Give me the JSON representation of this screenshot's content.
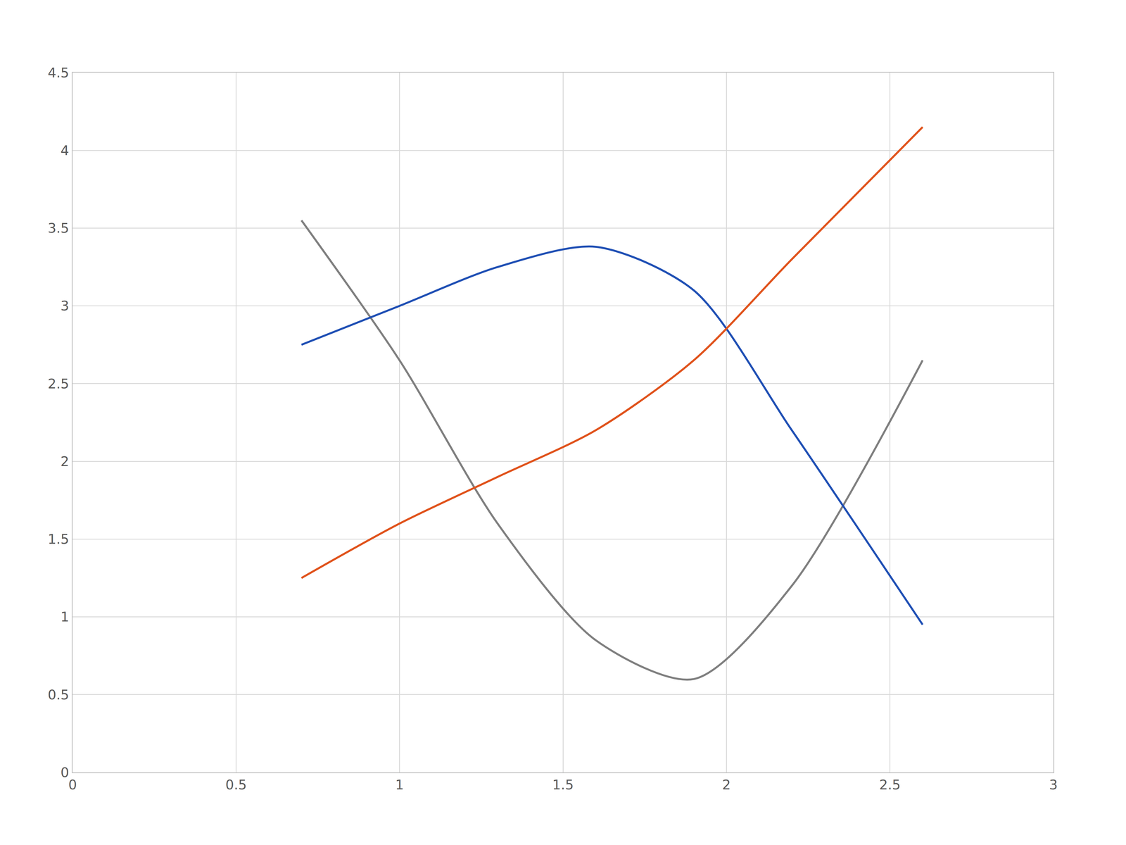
{
  "chart_data": {
    "type": "line",
    "x": [
      0.7,
      1.0,
      1.3,
      1.6,
      1.9,
      2.2,
      2.6
    ],
    "series": [
      {
        "color": "#7f7f7f",
        "values": [
          3.55,
          2.65,
          1.6,
          0.85,
          0.6,
          1.2,
          2.65
        ]
      },
      {
        "color": "#1f4fb4",
        "values": [
          2.75,
          3.0,
          3.25,
          3.38,
          3.1,
          2.2,
          0.95
        ]
      },
      {
        "color": "#e0521b",
        "values": [
          1.25,
          1.6,
          1.9,
          2.2,
          2.65,
          3.3,
          4.15
        ]
      }
    ],
    "xlim": [
      0,
      3
    ],
    "xticks": [
      0,
      0.5,
      1,
      1.5,
      2,
      2.5,
      3
    ],
    "ylim": [
      0,
      4.5
    ],
    "yticks": [
      0,
      0.5,
      1,
      1.5,
      2,
      2.5,
      3,
      3.5,
      4,
      4.5
    ],
    "grid": true
  }
}
